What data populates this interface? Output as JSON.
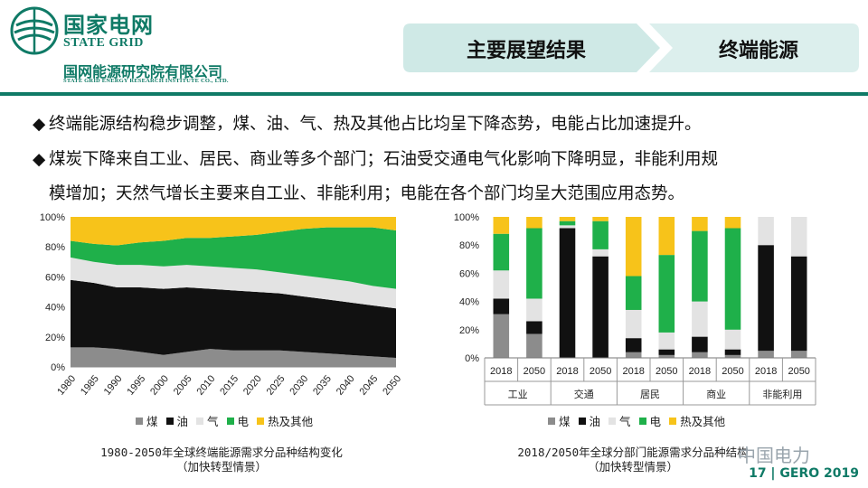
{
  "header": {
    "logo_cn": "国家电网",
    "logo_en": "STATE GRID",
    "org_cn": "国网能源研究院有限公司",
    "org_en": "STATE GRID ENERGY RESEARCH INSTITUTE CO., LTD.",
    "breadcrumb_left": "主要展望结果",
    "breadcrumb_right": "终端能源"
  },
  "bullets": {
    "b1": "终端能源结构稳步调整，煤、油、气、热及其他占比均呈下降态势，电能占比加速提升。",
    "b2_l1": "煤炭下降来自工业、居民、商业等多个部门；石油受交通电气化影响下降明显，非能利用规",
    "b2_l2": "模增加；天然气增长主要来自工业、非能利用；电能在各个部门均呈大范围应用态势。"
  },
  "legend": {
    "coal": "煤",
    "oil": "油",
    "gas": "气",
    "elec": "电",
    "heat": "热及其他"
  },
  "colors": {
    "coal": "#8c8c8c",
    "oil": "#111111",
    "gas": "#e3e3e3",
    "elec": "#1fb04a",
    "heat": "#f7c31a",
    "brand": "#0f7a66",
    "header_bg": "#d3ece9"
  },
  "captions": {
    "left_l1": "1980-2050年全球终端能源需求分品种结构变化",
    "left_l2": "（加快转型情景）",
    "right_l1": "2018/2050年全球分部门能源需求分品种结构",
    "right_l2": "（加快转型情景）"
  },
  "footer": {
    "page": "17 | GERO 2019",
    "watermark": "中国电力"
  },
  "chart_data": [
    {
      "type": "area",
      "stacked": true,
      "x": [
        "1980",
        "1985",
        "1990",
        "1995",
        "2000",
        "2005",
        "2010",
        "2015",
        "2020",
        "2025",
        "2030",
        "2035",
        "2040",
        "2045",
        "2050"
      ],
      "ylim": [
        0,
        100
      ],
      "yticks": [
        "0%",
        "20%",
        "40%",
        "60%",
        "80%",
        "100%"
      ],
      "series": [
        {
          "name": "煤",
          "key": "coal",
          "values": [
            13,
            13,
            12,
            10,
            8,
            10,
            12,
            11,
            11,
            11,
            10,
            9,
            8,
            7,
            6
          ]
        },
        {
          "name": "油",
          "key": "oil",
          "values": [
            45,
            43,
            41,
            43,
            44,
            43,
            40,
            40,
            39,
            38,
            37,
            36,
            35,
            34,
            33
          ]
        },
        {
          "name": "气",
          "key": "gas",
          "values": [
            15,
            14,
            15,
            15,
            15,
            15,
            15,
            15,
            15,
            14,
            14,
            14,
            14,
            13,
            13
          ]
        },
        {
          "name": "电",
          "key": "elec",
          "values": [
            11,
            12,
            13,
            15,
            17,
            18,
            19,
            21,
            23,
            27,
            31,
            34,
            36,
            39,
            39
          ]
        },
        {
          "name": "热及其他",
          "key": "heat",
          "values": [
            16,
            18,
            19,
            17,
            16,
            14,
            14,
            13,
            12,
            10,
            8,
            7,
            7,
            7,
            9
          ]
        }
      ]
    },
    {
      "type": "bar",
      "stacked": true,
      "categories": [
        "2018",
        "2050",
        "2018",
        "2050",
        "2018",
        "2050",
        "2018",
        "2050",
        "2018",
        "2050"
      ],
      "groups": [
        "工业",
        "交通",
        "居民",
        "商业",
        "非能利用"
      ],
      "ylim": [
        0,
        100
      ],
      "yticks": [
        "0%",
        "20%",
        "40%",
        "60%",
        "80%",
        "100%"
      ],
      "series": [
        {
          "name": "煤",
          "key": "coal",
          "values": [
            31,
            17,
            0,
            0,
            4,
            2,
            4,
            2,
            5,
            5
          ]
        },
        {
          "name": "油",
          "key": "oil",
          "values": [
            11,
            9,
            92,
            72,
            10,
            4,
            11,
            4,
            75,
            67
          ]
        },
        {
          "name": "气",
          "key": "gas",
          "values": [
            20,
            16,
            2,
            5,
            20,
            12,
            25,
            14,
            20,
            28
          ]
        },
        {
          "name": "电",
          "key": "elec",
          "values": [
            26,
            50,
            3,
            20,
            24,
            55,
            50,
            72,
            0,
            0
          ]
        },
        {
          "name": "热及其他",
          "key": "heat",
          "values": [
            12,
            8,
            3,
            3,
            42,
            27,
            10,
            8,
            0,
            0
          ]
        }
      ]
    }
  ]
}
